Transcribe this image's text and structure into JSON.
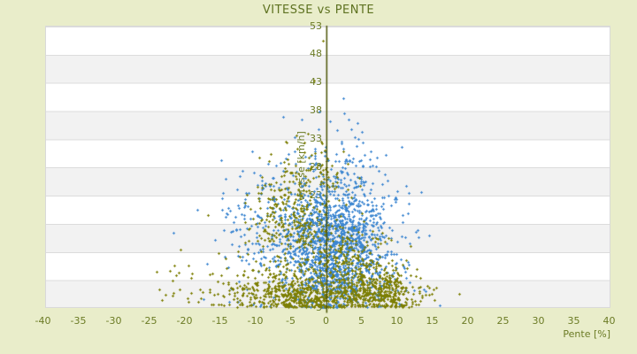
{
  "chart_data": {
    "type": "scatter",
    "title": "VITESSE vs PENTE",
    "xlabel": "Pente [%]",
    "ylabel": "Vitesse [km/h]",
    "xlim": [
      -40,
      40
    ],
    "ylim": [
      3,
      53
    ],
    "x_ticks": [
      -40,
      -35,
      -30,
      -25,
      -20,
      -15,
      -10,
      -5,
      0,
      5,
      10,
      15,
      20,
      25,
      30,
      35,
      40
    ],
    "y_ticks": [
      3,
      8,
      13,
      18,
      23,
      28,
      33,
      38,
      43,
      48,
      53
    ],
    "grid": "horizontal-bands",
    "legend": "none",
    "axis_line_x": 0,
    "colors": {
      "background": "#e9edca",
      "band_light": "#ffffff",
      "band_dark": "#f2f2f2",
      "band_line": "#dcdcdc",
      "plot_border": "#d9d9d9",
      "title_text": "#5e7220",
      "tick_text": "#6b7b25",
      "zero_axis_line": "#4b5404",
      "series_blue": "#3d87d1",
      "series_olive": "#7d7f05"
    },
    "series": [
      {
        "name": "blue",
        "color": "#3d87d1",
        "marker": "plus",
        "clusters": [
          {
            "cx": 0.8,
            "cy": 14.0,
            "sx": 3.3,
            "sy": 5.2,
            "n": 950
          },
          {
            "cx": -1.5,
            "cy": 15.5,
            "sx": 5.8,
            "sy": 6.5,
            "n": 380
          },
          {
            "cx": -7.0,
            "cy": 17.5,
            "sx": 4.2,
            "sy": 5.5,
            "n": 150
          },
          {
            "cx": 4.5,
            "cy": 13.0,
            "sx": 3.2,
            "sy": 4.8,
            "n": 180
          },
          {
            "cx": 1.8,
            "cy": 28.5,
            "sx": 3.0,
            "sy": 3.2,
            "n": 70
          },
          {
            "cx": 2.5,
            "cy": 6.5,
            "sx": 4.5,
            "sy": 2.0,
            "n": 120
          }
        ],
        "outliers": [
          [
            2.4,
            40.2
          ],
          [
            2.5,
            37.4
          ],
          [
            -0.9,
            37.8
          ],
          [
            -6.1,
            36.8
          ],
          [
            -3.4,
            36.4
          ],
          [
            0.6,
            36.1
          ],
          [
            3.2,
            36.3
          ],
          [
            4.4,
            35.8
          ],
          [
            -1.1,
            34.7
          ],
          [
            5.1,
            34.2
          ],
          [
            6.2,
            29.3
          ],
          [
            9.9,
            22.2
          ],
          [
            10.8,
            19.4
          ],
          [
            -12.6,
            23.9
          ],
          [
            -14.7,
            20.3
          ],
          [
            11.3,
            8.2
          ],
          [
            12.4,
            6.1
          ],
          [
            -13.8,
            10.2
          ]
        ]
      },
      {
        "name": "olive",
        "color": "#7d7f05",
        "marker": "plus",
        "clusters": [
          {
            "cx": 0.5,
            "cy": 4.8,
            "sx": 5.5,
            "sy": 1.5,
            "n": 430
          },
          {
            "cx": 8.2,
            "cy": 6.0,
            "sx": 2.6,
            "sy": 1.9,
            "n": 240
          },
          {
            "cx": -7.0,
            "cy": 6.0,
            "sx": 3.6,
            "sy": 2.2,
            "n": 170
          },
          {
            "cx": -5.2,
            "cy": 19.5,
            "sx": 2.8,
            "sy": 4.6,
            "n": 230
          },
          {
            "cx": -0.5,
            "cy": 11.5,
            "sx": 3.8,
            "sy": 4.6,
            "n": 260
          },
          {
            "cx": 4.5,
            "cy": 9.5,
            "sx": 3.2,
            "sy": 3.0,
            "n": 140
          },
          {
            "cx": -14.5,
            "cy": 7.0,
            "sx": 3.8,
            "sy": 2.6,
            "n": 55
          },
          {
            "cx": -1.2,
            "cy": 26.5,
            "sx": 2.4,
            "sy": 2.8,
            "n": 70
          }
        ],
        "outliers": [
          [
            -0.5,
            50.3
          ],
          [
            -1.7,
            43.3
          ],
          [
            -4.2,
            33.6
          ],
          [
            -2.6,
            33.9
          ],
          [
            6.6,
            16.6
          ],
          [
            8.3,
            14.7
          ],
          [
            11.9,
            13.9
          ],
          [
            -16.7,
            19.4
          ],
          [
            -15.2,
            12.6
          ],
          [
            -20.6,
            13.3
          ],
          [
            -21.2,
            8.7
          ],
          [
            -19.6,
            4.6
          ],
          [
            -23.2,
            4.4
          ],
          [
            14.6,
            6.6
          ],
          [
            15.3,
            4.3
          ],
          [
            -17.8,
            6.2
          ],
          [
            -16.4,
            8.9
          ],
          [
            12.8,
            9.8
          ],
          [
            13.6,
            5.1
          ],
          [
            -11.4,
            14.5
          ],
          [
            -18.9,
            9.1
          ],
          [
            -12.2,
            12.1
          ]
        ]
      }
    ]
  }
}
